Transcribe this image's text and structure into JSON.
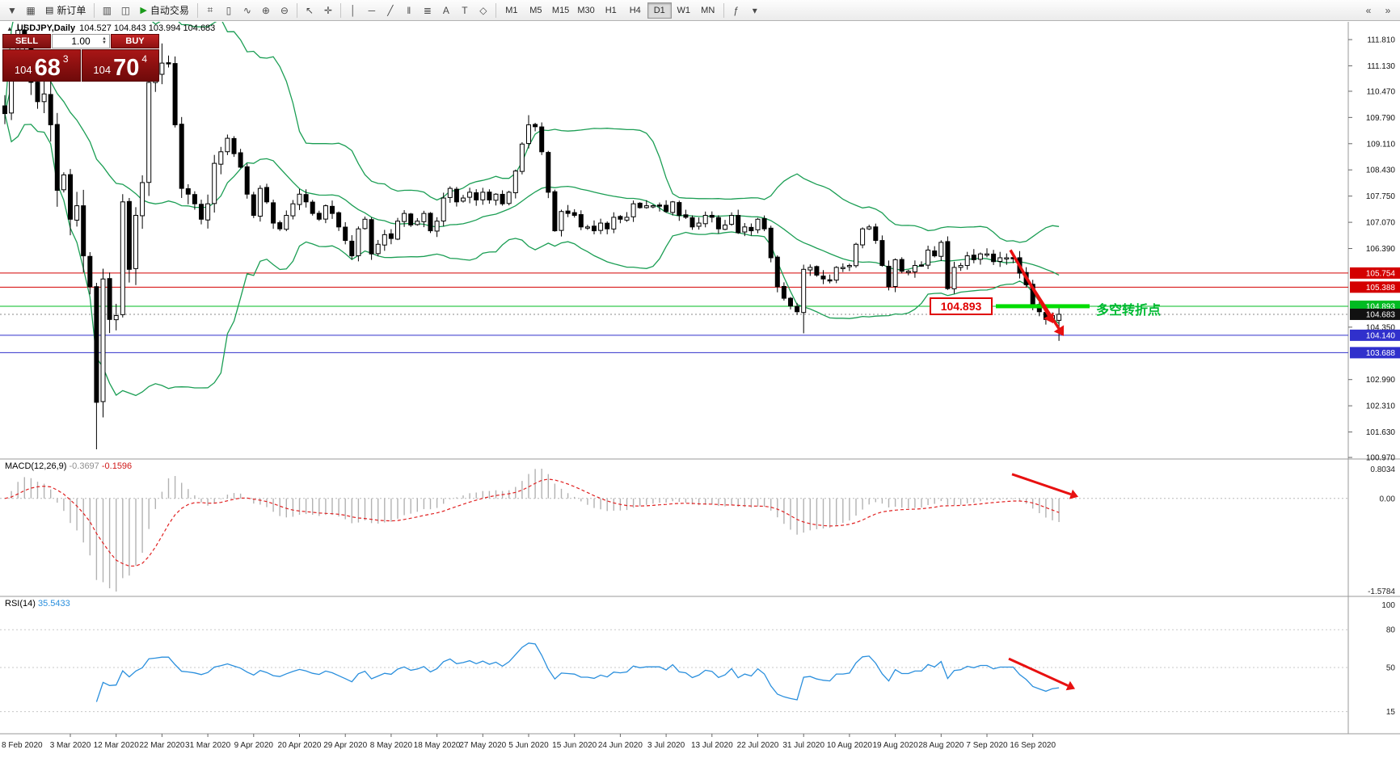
{
  "toolbar": {
    "items": [
      {
        "type": "icon",
        "glyph": "▼",
        "name": "menu-icon"
      },
      {
        "type": "icon",
        "glyph": "▦",
        "name": "chart-windows-icon"
      },
      {
        "type": "button",
        "glyph": "▤",
        "label": "新订单",
        "name": "new-order-button"
      },
      {
        "type": "sep"
      },
      {
        "type": "icon",
        "glyph": "▥",
        "name": "profiles-icon"
      },
      {
        "type": "icon",
        "glyph": "◫",
        "name": "tile-windows-icon"
      },
      {
        "type": "button",
        "glyph": "▶",
        "glyph_color": "#1a9a1a",
        "label": "自动交易",
        "name": "autotrading-button"
      },
      {
        "type": "sep"
      },
      {
        "type": "icon",
        "glyph": "⌗",
        "name": "bar-chart-icon"
      },
      {
        "type": "icon",
        "glyph": "▯",
        "name": "candlestick-icon"
      },
      {
        "type": "icon",
        "glyph": "∿",
        "name": "line-chart-icon"
      },
      {
        "type": "icon",
        "glyph": "⊕",
        "name": "zoom-in-icon"
      },
      {
        "type": "icon",
        "glyph": "⊖",
        "name": "zoom-out-icon"
      },
      {
        "type": "sep"
      },
      {
        "type": "icon",
        "glyph": "↖",
        "name": "cursor-icon"
      },
      {
        "type": "icon",
        "glyph": "✛",
        "name": "crosshair-icon"
      },
      {
        "type": "sep"
      },
      {
        "type": "icon",
        "glyph": "│",
        "name": "vertical-line-icon"
      },
      {
        "type": "icon",
        "glyph": "─",
        "name": "horizontal-line-icon"
      },
      {
        "type": "icon",
        "glyph": "╱",
        "name": "trendline-icon"
      },
      {
        "type": "icon",
        "glyph": "‖",
        "name": "channel-icon"
      },
      {
        "type": "icon",
        "glyph": "≣",
        "name": "fibonacci-icon"
      },
      {
        "type": "icon",
        "glyph": "A",
        "name": "text-icon"
      },
      {
        "type": "icon",
        "glyph": "T",
        "name": "text-label-icon"
      },
      {
        "type": "icon",
        "glyph": "◇",
        "name": "shapes-icon"
      },
      {
        "type": "sep"
      },
      {
        "type": "tf-group"
      },
      {
        "type": "sep"
      },
      {
        "type": "icon",
        "glyph": "ƒ",
        "name": "indicators-icon"
      },
      {
        "type": "icon",
        "glyph": "▾",
        "name": "templates-icon"
      }
    ],
    "right_items": [
      {
        "type": "icon",
        "glyph": "«",
        "name": "toolbar-scroll-left-icon"
      },
      {
        "type": "icon",
        "glyph": "»",
        "name": "toolbar-scroll-right-icon"
      }
    ],
    "timeframes": [
      "M1",
      "M5",
      "M15",
      "M30",
      "H1",
      "H4",
      "D1",
      "W1",
      "MN"
    ],
    "active_timeframe": "D1"
  },
  "chart": {
    "symbol": "USDJPY,Daily",
    "ohlc_text": "104.527 104.843 103.994 104.683"
  },
  "one_click": {
    "sell_label": "SELL",
    "buy_label": "BUY",
    "volume": "1.00",
    "sell_price_small": "104",
    "sell_price_big": "68",
    "sell_price_sup": "3",
    "buy_price_small": "104",
    "buy_price_big": "70",
    "buy_price_sup": "4"
  },
  "price_axis": {
    "ticks": [
      "111.810",
      "111.130",
      "110.470",
      "109.790",
      "109.110",
      "108.430",
      "107.750",
      "107.070",
      "106.390",
      "104.350",
      "102.990",
      "102.310",
      "101.630",
      "100.970"
    ],
    "line_labels": [
      {
        "label": "105.754",
        "color": "#d40000",
        "line": "solid"
      },
      {
        "label": "105.388",
        "color": "#d40000",
        "line": "solid"
      },
      {
        "label": "104.893",
        "color": "#00bb22",
        "line": "solid"
      },
      {
        "label": "104.683",
        "color": "#111111",
        "line": "dotted"
      },
      {
        "label": "104.140",
        "color": "#3030cc",
        "line": "solid"
      },
      {
        "label": "103.688",
        "color": "#3030cc",
        "line": "solid"
      }
    ]
  },
  "macd": {
    "name": "MACD(12,26,9)",
    "value_main": "-0.3697",
    "value_signal": "-0.1596",
    "axis": [
      "0.8034",
      "0.00",
      "-1.5784"
    ]
  },
  "rsi": {
    "name": "RSI(14)",
    "value": "35.5433",
    "axis": [
      "100",
      "80",
      "50",
      "15"
    ],
    "levels": [
      80,
      50,
      15
    ]
  },
  "time_axis": {
    "first_partial": "8 Feb 2020",
    "labels": [
      "3 Mar 2020",
      "12 Mar 2020",
      "22 Mar 2020",
      "31 Mar 2020",
      "9 Apr 2020",
      "20 Apr 2020",
      "29 Apr 2020",
      "8 May 2020",
      "18 May 2020",
      "27 May 2020",
      "5 Jun 2020",
      "15 Jun 2020",
      "24 Jun 2020",
      "3 Jul 2020",
      "13 Jul 2020",
      "22 Jul 2020",
      "31 Jul 2020",
      "10 Aug 2020",
      "19 Aug 2020",
      "28 Aug 2020",
      "7 Sep 2020",
      "16 Sep 2020"
    ]
  },
  "annotations": {
    "price_flag": "104.893",
    "turning_point_text": "多空转折点",
    "level_price": 104.893,
    "segment_color": "#00dd00",
    "arrow_color": "#e81010"
  },
  "chart_data": {
    "type": "candlestick",
    "symbol": "USDJPY",
    "timeframe": "Daily",
    "price_range_visible": [
      100.93,
      112.27
    ],
    "indicators": [
      "Bollinger Bands(20,2)",
      "MACD(12,26,9)",
      "RSI(14)"
    ],
    "closes": [
      109.89,
      111.35,
      112.05,
      111.6,
      110.7,
      110.2,
      110.4,
      109.6,
      107.9,
      108.3,
      107.15,
      107.5,
      106.2,
      105.4,
      102.4,
      105.6,
      104.55,
      104.65,
      107.6,
      105.85,
      107.25,
      108.1,
      110.7,
      110.9,
      111.2,
      111.2,
      109.6,
      107.95,
      107.8,
      107.55,
      107.15,
      107.55,
      108.6,
      108.9,
      109.25,
      108.85,
      108.5,
      107.8,
      107.25,
      107.95,
      107.6,
      107.05,
      106.9,
      107.25,
      107.55,
      107.8,
      107.6,
      107.3,
      107.15,
      107.5,
      107.3,
      106.95,
      106.6,
      106.2,
      106.9,
      107.15,
      106.25,
      106.5,
      106.75,
      106.65,
      107.1,
      107.3,
      107.0,
      107.1,
      107.3,
      106.85,
      107.1,
      107.7,
      107.95,
      107.6,
      107.7,
      107.85,
      107.65,
      107.85,
      107.65,
      107.8,
      107.55,
      107.85,
      108.4,
      109.1,
      109.6,
      109.55,
      108.9,
      107.85,
      106.85,
      107.35,
      107.3,
      107.25,
      106.95,
      106.95,
      106.85,
      107.05,
      106.9,
      107.2,
      107.15,
      107.2,
      107.55,
      107.45,
      107.5,
      107.5,
      107.5,
      107.35,
      107.6,
      107.25,
      107.2,
      106.95,
      107.05,
      107.25,
      107.2,
      106.9,
      107.0,
      107.25,
      106.8,
      106.95,
      106.85,
      107.15,
      106.9,
      106.15,
      105.4,
      105.1,
      104.9,
      104.75,
      105.85,
      105.9,
      105.7,
      105.6,
      105.55,
      105.9,
      105.9,
      105.95,
      106.5,
      106.9,
      106.95,
      106.6,
      105.95,
      105.4,
      106.1,
      105.8,
      105.8,
      105.95,
      105.95,
      106.35,
      106.2,
      106.55,
      105.35,
      105.9,
      105.95,
      106.2,
      106.1,
      106.25,
      106.25,
      106.05,
      106.15,
      106.15,
      106.15,
      105.75,
      105.45,
      104.95,
      104.75,
      104.55,
      104.65,
      104.683
    ],
    "specials": {
      "2": {
        "h": 112.22
      },
      "14": {
        "l": 101.18
      },
      "24": {
        "h": 111.71
      },
      "80": {
        "h": 109.85
      },
      "122": {
        "o": 104.73,
        "l": 104.19
      },
      "161": {
        "o": 104.527,
        "h": 104.843,
        "l": 103.994,
        "c": 104.683
      }
    },
    "last_candle": {
      "o": 104.527,
      "h": 104.843,
      "l": 103.994,
      "c": 104.683
    },
    "bollinger": {
      "period": 20,
      "deviation": 2,
      "color": "#1b9e54"
    }
  }
}
